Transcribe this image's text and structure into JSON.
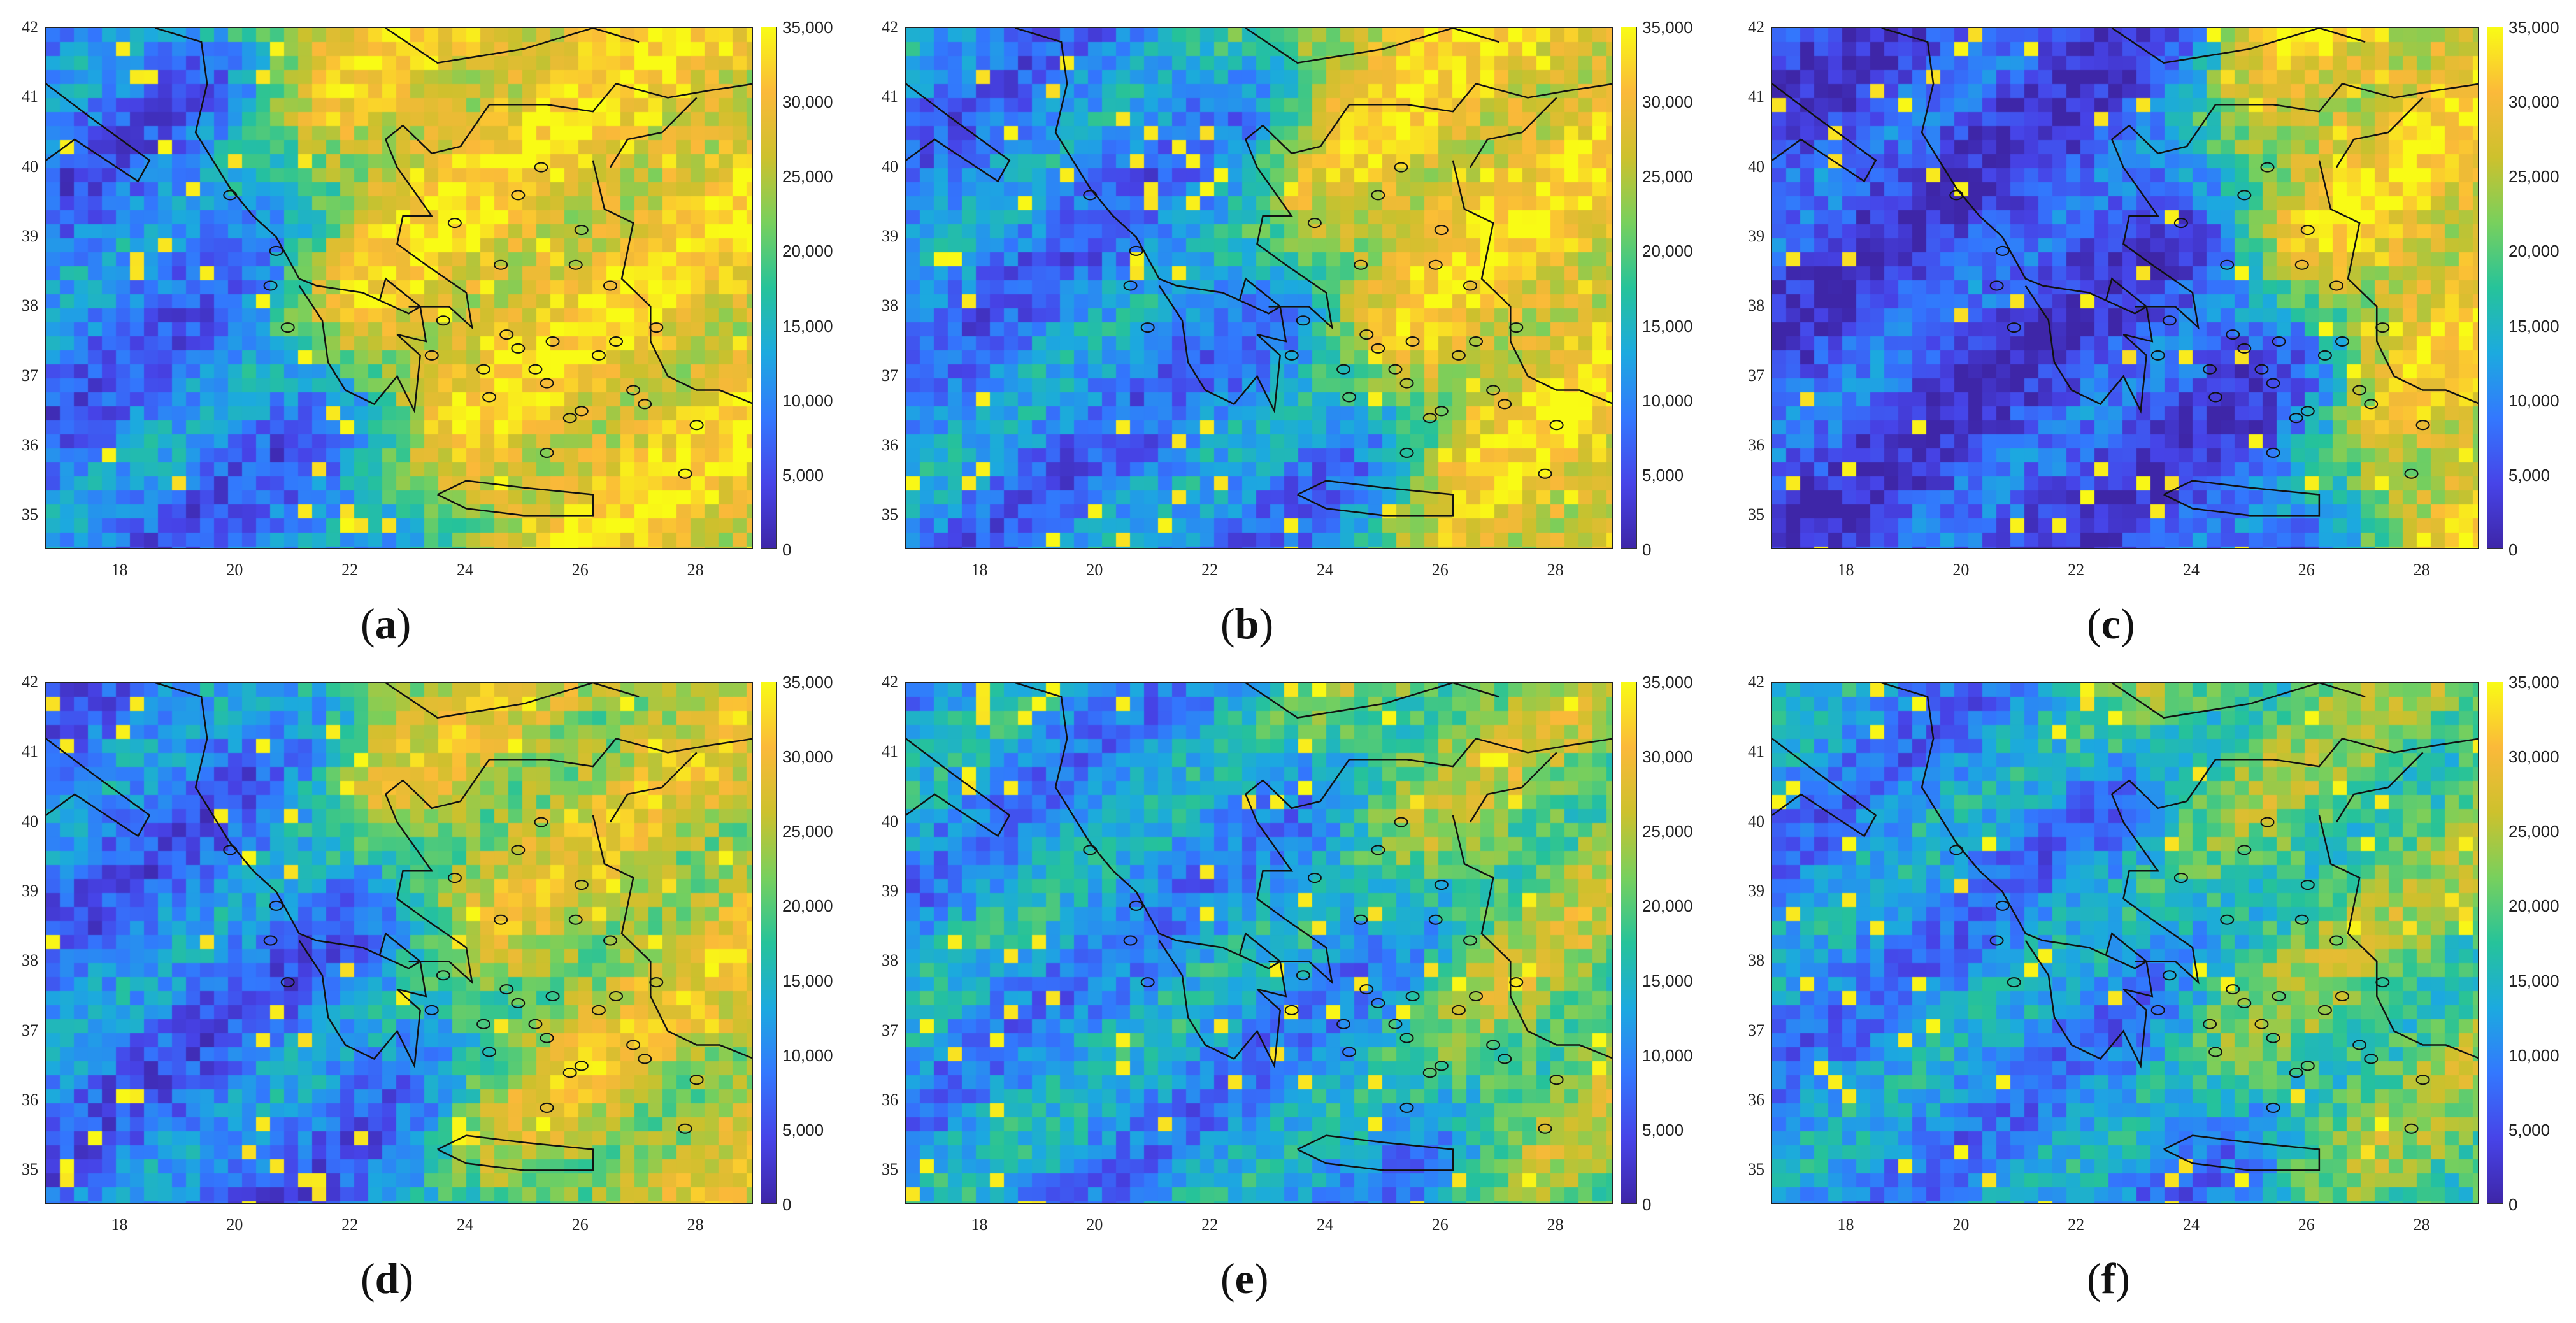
{
  "colorbar": {
    "ticks": [
      "35,000",
      "30,000",
      "25,000",
      "20,000",
      "15,000",
      "10,000",
      "5,000",
      "0"
    ],
    "min": 0,
    "max": 35000
  },
  "axes": {
    "lat_ticks": [
      "42",
      "41",
      "40",
      "39",
      "38",
      "37",
      "36",
      "35"
    ],
    "lon_ticks": [
      "18",
      "20",
      "22",
      "24",
      "26",
      "28"
    ],
    "lat_range": [
      34.5,
      42
    ],
    "lon_range": [
      16.7,
      29
    ]
  },
  "colormap": [
    "#3e26a8",
    "#4744e8",
    "#3378fe",
    "#1caadf",
    "#26c39a",
    "#78d05d",
    "#cdc12d",
    "#fbb93a",
    "#f9fb15"
  ],
  "panels": [
    {
      "id": "a",
      "label_open": "(",
      "letter": "a",
      "label_close": ")",
      "mean_west": 9000,
      "mean_east": 30000,
      "boundary_lon": 21.5
    },
    {
      "id": "b",
      "label_open": "(",
      "letter": "b",
      "label_close": ")",
      "mean_west": 10000,
      "mean_east": 30000,
      "boundary_lon": 24.0
    },
    {
      "id": "c",
      "label_open": "(",
      "letter": "c",
      "label_close": ")",
      "mean_west": 5000,
      "mean_east": 30000,
      "boundary_lon": 25.5
    },
    {
      "id": "d",
      "label_open": "(",
      "letter": "d",
      "label_close": ")",
      "mean_west": 9000,
      "mean_east": 26000,
      "boundary_lon": 23.0
    },
    {
      "id": "e",
      "label_open": "(",
      "letter": "e",
      "label_close": ")",
      "mean_west": 12000,
      "mean_east": 23000,
      "boundary_lon": 25.5
    },
    {
      "id": "f",
      "label_open": "(",
      "letter": "f",
      "label_close": ")",
      "mean_west": 11000,
      "mean_east": 21000,
      "boundary_lon": 24.0
    }
  ]
}
